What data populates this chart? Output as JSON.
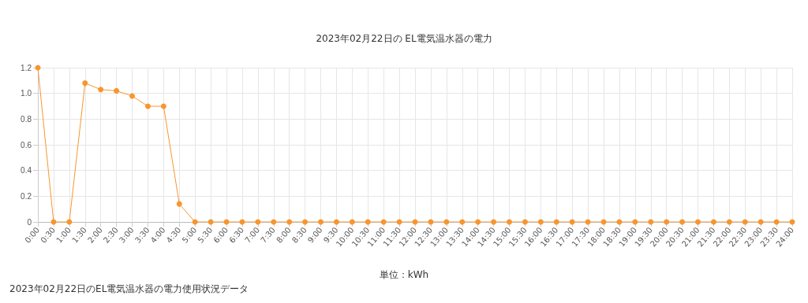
{
  "chart_data": {
    "type": "line",
    "title": "2023年02月22日の EL電気温水器の電力",
    "categories": [
      "0:00",
      "0:30",
      "1:00",
      "1:30",
      "2:00",
      "2:30",
      "3:00",
      "3:30",
      "4:00",
      "4:30",
      "5:00",
      "5:30",
      "6:00",
      "6:30",
      "7:00",
      "7:30",
      "8:00",
      "8:30",
      "9:00",
      "9:30",
      "10:00",
      "10:30",
      "11:00",
      "11:30",
      "12:00",
      "12:30",
      "13:00",
      "13:30",
      "14:00",
      "14:30",
      "15:00",
      "15:30",
      "16:00",
      "16:30",
      "17:00",
      "17:30",
      "18:00",
      "18:30",
      "19:00",
      "19:30",
      "20:00",
      "20:30",
      "21:00",
      "21:30",
      "22:00",
      "22:30",
      "23:00",
      "23:30",
      "24:00"
    ],
    "series": [
      {
        "color": "#f7962f",
        "values": [
          1.2,
          0,
          0,
          1.08,
          1.03,
          1.02,
          0.98,
          0.9,
          0.9,
          0.14,
          0,
          0,
          0,
          0,
          0,
          0,
          0,
          0,
          0,
          0,
          0,
          0,
          0,
          0,
          0,
          0,
          0,
          0,
          0,
          0,
          0,
          0,
          0,
          0,
          0,
          0,
          0,
          0,
          0,
          0,
          0,
          0,
          0,
          0,
          0,
          0,
          0,
          0,
          0
        ]
      }
    ],
    "ylim": [
      0,
      1.2
    ],
    "yticks": [
      0,
      0.2,
      0.4,
      0.6,
      0.8,
      {
        "value": 1,
        "label": "1.0"
      },
      1.2
    ],
    "annotations": [
      "単位：kWh",
      "2023年02月22日のEL電気温水器の電力使用状況データ"
    ],
    "grid": true,
    "marker": "circle",
    "line_style": "solid"
  }
}
